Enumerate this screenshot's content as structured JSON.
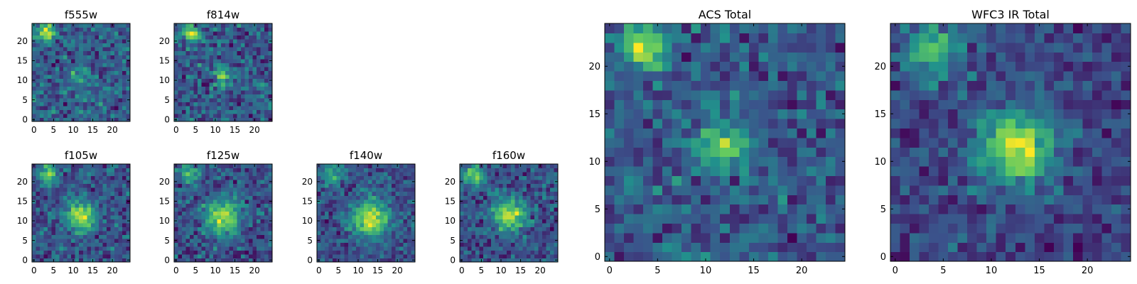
{
  "figure": {
    "background": "#ffffff",
    "colormap": "viridis",
    "colormap_stops": [
      "#440154",
      "#3b528b",
      "#21918c",
      "#5ec962",
      "#fde725"
    ]
  },
  "chart_data": [
    {
      "type": "heatmap",
      "title": "f555w",
      "grid_size": 25,
      "x_ticks": [
        "0",
        "5",
        "10",
        "15",
        "20"
      ],
      "y_ticks": [
        "0",
        "5",
        "10",
        "15",
        "20"
      ],
      "xlim": [
        -0.5,
        24.5
      ],
      "ylim": [
        -0.5,
        24.5
      ],
      "grid": false,
      "noise_level": 0.38,
      "sources": [
        {
          "x": 3.5,
          "y": 22.0,
          "sigma": 1.6,
          "amplitude": 1.0
        },
        {
          "x": 12.0,
          "y": 11.0,
          "sigma": 1.8,
          "amplitude": 0.35
        }
      ]
    },
    {
      "type": "heatmap",
      "title": "f814w",
      "grid_size": 25,
      "x_ticks": [
        "0",
        "5",
        "10",
        "15",
        "20"
      ],
      "y_ticks": [
        "0",
        "5",
        "10",
        "15",
        "20"
      ],
      "xlim": [
        -0.5,
        24.5
      ],
      "ylim": [
        -0.5,
        24.5
      ],
      "grid": false,
      "noise_level": 0.34,
      "sources": [
        {
          "x": 3.5,
          "y": 22.0,
          "sigma": 1.4,
          "amplitude": 1.0
        },
        {
          "x": 12.0,
          "y": 11.0,
          "sigma": 1.6,
          "amplitude": 0.55
        }
      ]
    },
    {
      "type": "heatmap",
      "title": "f105w",
      "grid_size": 25,
      "x_ticks": [
        "0",
        "5",
        "10",
        "15",
        "20"
      ],
      "y_ticks": [
        "0",
        "5",
        "10",
        "15",
        "20"
      ],
      "xlim": [
        -0.5,
        24.5
      ],
      "ylim": [
        -0.5,
        24.5
      ],
      "grid": false,
      "noise_level": 0.3,
      "sources": [
        {
          "x": 3.5,
          "y": 22.0,
          "sigma": 1.8,
          "amplitude": 0.8
        },
        {
          "x": 12.0,
          "y": 11.5,
          "sigma": 2.6,
          "amplitude": 1.0
        }
      ]
    },
    {
      "type": "heatmap",
      "title": "f125w",
      "grid_size": 25,
      "x_ticks": [
        "0",
        "5",
        "10",
        "15",
        "20"
      ],
      "y_ticks": [
        "0",
        "5",
        "10",
        "15",
        "20"
      ],
      "xlim": [
        -0.5,
        24.5
      ],
      "ylim": [
        -0.5,
        24.5
      ],
      "grid": false,
      "noise_level": 0.34,
      "sources": [
        {
          "x": 3.5,
          "y": 22.0,
          "sigma": 1.8,
          "amplitude": 0.7
        },
        {
          "x": 12.0,
          "y": 11.0,
          "sigma": 3.2,
          "amplitude": 1.0
        }
      ]
    },
    {
      "type": "heatmap",
      "title": "f140w",
      "grid_size": 25,
      "x_ticks": [
        "0",
        "5",
        "10",
        "15",
        "20"
      ],
      "y_ticks": [
        "0",
        "5",
        "10",
        "15",
        "20"
      ],
      "xlim": [
        -0.5,
        24.5
      ],
      "ylim": [
        -0.5,
        24.5
      ],
      "grid": false,
      "noise_level": 0.28,
      "sources": [
        {
          "x": 3.5,
          "y": 22.0,
          "sigma": 1.8,
          "amplitude": 0.7
        },
        {
          "x": 13.0,
          "y": 10.5,
          "sigma": 3.4,
          "amplitude": 1.0
        }
      ]
    },
    {
      "type": "heatmap",
      "title": "f160w",
      "grid_size": 25,
      "x_ticks": [
        "0",
        "5",
        "10",
        "15",
        "20"
      ],
      "y_ticks": [
        "0",
        "5",
        "10",
        "15",
        "20"
      ],
      "xlim": [
        -0.5,
        24.5
      ],
      "ylim": [
        -0.5,
        24.5
      ],
      "grid": false,
      "noise_level": 0.3,
      "sources": [
        {
          "x": 3.5,
          "y": 21.5,
          "sigma": 1.8,
          "amplitude": 0.8
        },
        {
          "x": 12.0,
          "y": 11.5,
          "sigma": 2.8,
          "amplitude": 1.0
        }
      ]
    },
    {
      "type": "heatmap",
      "title": "ACS Total",
      "grid_size": 25,
      "x_ticks": [
        "0",
        "5",
        "10",
        "15",
        "20"
      ],
      "y_ticks": [
        "0",
        "5",
        "10",
        "15",
        "20"
      ],
      "xlim": [
        -0.5,
        24.5
      ],
      "ylim": [
        -0.5,
        24.5
      ],
      "grid": false,
      "noise_level": 0.3,
      "sources": [
        {
          "x": 3.5,
          "y": 22.0,
          "sigma": 1.5,
          "amplitude": 1.0
        },
        {
          "x": 12.0,
          "y": 11.5,
          "sigma": 1.8,
          "amplitude": 0.75
        }
      ]
    },
    {
      "type": "heatmap",
      "title": "WFC3 IR Total",
      "grid_size": 25,
      "x_ticks": [
        "0",
        "5",
        "10",
        "15",
        "20"
      ],
      "y_ticks": [
        "0",
        "5",
        "10",
        "15",
        "20"
      ],
      "xlim": [
        -0.5,
        24.5
      ],
      "ylim": [
        -0.5,
        24.5
      ],
      "grid": false,
      "noise_level": 0.24,
      "sources": [
        {
          "x": 4.0,
          "y": 21.5,
          "sigma": 2.0,
          "amplitude": 0.7
        },
        {
          "x": 12.5,
          "y": 11.5,
          "sigma": 2.8,
          "amplitude": 1.0
        }
      ]
    }
  ]
}
